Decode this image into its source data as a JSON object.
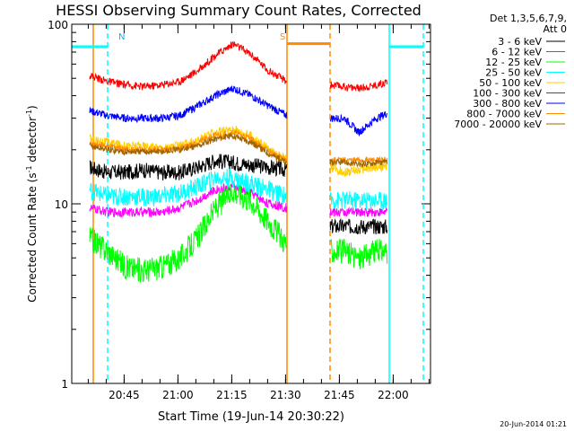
{
  "chart_data": {
    "type": "line",
    "title": "HESSI Observing Summary Count Rates, Corrected",
    "xlabel": "Start Time (19-Jun-14 20:30:22)",
    "ylabel_parts": [
      "Corrected Count Rate (s",
      "-1",
      " detector",
      "-1",
      ")"
    ],
    "y_scale": "log",
    "ylim": [
      1,
      100
    ],
    "y_ticks": [
      1,
      10,
      100
    ],
    "y_tick_labels": [
      "1",
      "10",
      "100"
    ],
    "x_unit": "minutes since 20:30:22",
    "xlim": [
      0,
      100
    ],
    "x_ticks": [
      14.6,
      29.6,
      44.6,
      59.6,
      74.6,
      89.6
    ],
    "x_tick_labels": [
      "20:45",
      "21:00",
      "21:15",
      "21:30",
      "21:45",
      "22:00"
    ],
    "legend": {
      "header": [
        "Det 1,3,5,6,7,9,",
        "Att 0"
      ],
      "placement": "right"
    },
    "gaps": [
      [
        60.0,
        72.0
      ],
      [
        88.5,
        100
      ]
    ],
    "series": [
      {
        "name": "3 - 6 keV",
        "color": "#000000",
        "x": [
          5,
          10,
          15,
          20,
          25,
          30,
          35,
          40,
          45,
          50,
          55,
          60,
          72,
          76,
          80,
          85,
          88
        ],
        "y": [
          16.0,
          15.0,
          15.0,
          15.5,
          15.0,
          15.0,
          16.0,
          17.5,
          17.0,
          16.5,
          16.0,
          15.5,
          7.5,
          7.5,
          7.5,
          7.5,
          7.5
        ]
      },
      {
        "name": "6 - 12 keV",
        "color": "#ff00ff",
        "x": [
          5,
          10,
          15,
          20,
          25,
          30,
          35,
          40,
          45,
          50,
          55,
          60,
          72,
          76,
          80,
          85,
          88
        ],
        "y": [
          9.5,
          9.0,
          9.0,
          9.0,
          9.0,
          9.5,
          10.5,
          12.0,
          12.5,
          11.5,
          10.0,
          9.5,
          9.0,
          9.0,
          9.0,
          9.0,
          9.0
        ]
      },
      {
        "name": "12 - 25 keV",
        "color": "#00ff00",
        "x": [
          5,
          10,
          15,
          20,
          25,
          30,
          35,
          40,
          45,
          50,
          55,
          60,
          72,
          76,
          80,
          85,
          88
        ],
        "y": [
          6.5,
          5.5,
          4.5,
          4.3,
          4.5,
          5.0,
          6.5,
          9.5,
          12.0,
          10.5,
          8.0,
          6.0,
          5.5,
          5.5,
          5.0,
          5.5,
          5.5
        ]
      },
      {
        "name": "25 - 50 keV",
        "color": "#00ffff",
        "x": [
          5,
          10,
          15,
          20,
          25,
          30,
          35,
          40,
          45,
          50,
          55,
          60,
          72,
          76,
          80,
          85,
          88
        ],
        "y": [
          12.0,
          11.0,
          11.0,
          11.0,
          11.0,
          11.5,
          12.5,
          14.0,
          14.0,
          13.0,
          12.0,
          11.0,
          10.5,
          10.5,
          10.5,
          10.5,
          10.5
        ]
      },
      {
        "name": "50 - 100 keV",
        "color": "#ffcc00",
        "x": [
          5,
          10,
          15,
          20,
          25,
          30,
          35,
          40,
          45,
          50,
          55,
          60,
          72,
          76,
          80,
          85,
          88
        ],
        "y": [
          23.0,
          22.0,
          21.0,
          21.0,
          20.5,
          21.0,
          22.5,
          25.0,
          26.0,
          24.0,
          20.0,
          17.5,
          16.0,
          15.0,
          15.5,
          16.0,
          16.0
        ]
      },
      {
        "name": "100 - 300 keV",
        "color": "#ff0000",
        "x": [
          5,
          10,
          15,
          20,
          25,
          30,
          35,
          40,
          45,
          50,
          55,
          60,
          72,
          76,
          80,
          85,
          88
        ],
        "y": [
          52,
          48,
          46,
          45,
          46,
          48,
          55,
          67,
          78,
          68,
          55,
          48,
          46,
          45,
          44,
          46,
          48
        ]
      },
      {
        "name": "300 - 800 keV",
        "color": "#0000ff",
        "x": [
          5,
          10,
          15,
          20,
          25,
          30,
          35,
          40,
          45,
          50,
          55,
          60,
          72,
          76,
          80,
          85,
          88
        ],
        "y": [
          33,
          31,
          30,
          30,
          30,
          31,
          35,
          40,
          44,
          40,
          35,
          31,
          30,
          30,
          25,
          30,
          32
        ]
      },
      {
        "name": "800 - 7000 keV",
        "color": "#ff8c00",
        "x": [
          5,
          10,
          15,
          20,
          25,
          30,
          35,
          40,
          45,
          50,
          55,
          60,
          72,
          76,
          80,
          85,
          88
        ],
        "y": [
          22.0,
          21.0,
          20.0,
          20.0,
          20.0,
          20.5,
          22.0,
          24.0,
          25.0,
          23.0,
          19.5,
          17.5,
          17.5,
          17.5,
          17.5,
          17.5,
          17.5
        ]
      },
      {
        "name": "7000 - 20000 keV",
        "color": "#a06400",
        "x": [
          5,
          10,
          15,
          20,
          25,
          30,
          35,
          40,
          45,
          50,
          55,
          60,
          72,
          76,
          80,
          85,
          88
        ],
        "y": [
          21.0,
          20.0,
          19.5,
          19.5,
          19.5,
          20.0,
          21.0,
          23.0,
          24.0,
          22.0,
          19.0,
          17.0,
          17.0,
          17.0,
          16.5,
          17.0,
          17.0
        ]
      }
    ],
    "annotations": [
      {
        "text": "N",
        "color": "#00b4ff",
        "x": 12
      },
      {
        "text": "S",
        "color": "#ff8c00",
        "x": 60
      }
    ],
    "state_markers": [
      {
        "kind": "solid",
        "color": "#ff8c00",
        "x": 6
      },
      {
        "kind": "dashed",
        "color": "#00ffff",
        "x": 10
      },
      {
        "kind": "solid",
        "color": "#ff8c00",
        "x": 60
      },
      {
        "kind": "dashed",
        "color": "#ff8c00",
        "x": 72
      },
      {
        "kind": "solid",
        "color": "#00ffff",
        "x": 88.5
      },
      {
        "kind": "dashed",
        "color": "#00ffff",
        "x": 98
      }
    ],
    "state_bars": [
      {
        "color": "#00ffff",
        "x": [
          0,
          10
        ],
        "level": 75
      },
      {
        "color": "#ff8c00",
        "x": [
          60,
          72
        ],
        "level": 78
      },
      {
        "color": "#00ffff",
        "x": [
          88.5,
          98
        ],
        "level": 75
      }
    ]
  },
  "footer": {
    "date_stamp": "20-Jun-2014 01:21"
  }
}
